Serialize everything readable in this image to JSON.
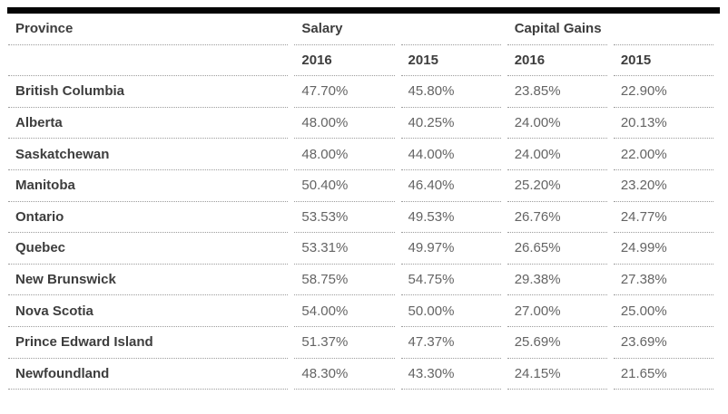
{
  "table": {
    "column_groups": [
      {
        "label": "Province"
      },
      {
        "label": "Salary"
      },
      {
        "label": "Capital Gains"
      }
    ],
    "year_headers": [
      "2016",
      "2015",
      "2016",
      "2015"
    ],
    "rows": [
      {
        "province": "British Columbia",
        "values": [
          "47.70%",
          "45.80%",
          "23.85%",
          "22.90%"
        ]
      },
      {
        "province": "Alberta",
        "values": [
          "48.00%",
          "40.25%",
          "24.00%",
          "20.13%"
        ]
      },
      {
        "province": "Saskatchewan",
        "values": [
          "48.00%",
          "44.00%",
          "24.00%",
          "22.00%"
        ]
      },
      {
        "province": "Manitoba",
        "values": [
          "50.40%",
          "46.40%",
          "25.20%",
          "23.20%"
        ]
      },
      {
        "province": "Ontario",
        "values": [
          "53.53%",
          "49.53%",
          "26.76%",
          "24.77%"
        ]
      },
      {
        "province": "Quebec",
        "values": [
          "53.31%",
          "49.97%",
          "26.65%",
          "24.99%"
        ]
      },
      {
        "province": "New Brunswick",
        "values": [
          "58.75%",
          "54.75%",
          "29.38%",
          "27.38%"
        ]
      },
      {
        "province": "Nova Scotia",
        "values": [
          "54.00%",
          "50.00%",
          "27.00%",
          "25.00%"
        ]
      },
      {
        "province": "Prince Edward Island",
        "values": [
          "51.37%",
          "47.37%",
          "25.69%",
          "23.69%"
        ]
      },
      {
        "province": "Newfoundland",
        "values": [
          "48.30%",
          "43.30%",
          "24.15%",
          "21.65%"
        ]
      }
    ],
    "colors": {
      "top_bar": "#040404",
      "header_text": "#3d3d3d",
      "value_text": "#646464",
      "divider": "#9c9c9c",
      "background": "#ffffff"
    }
  },
  "chart_data": {
    "type": "table",
    "columns": [
      "Province",
      "Salary 2016",
      "Salary 2015",
      "Capital Gains 2016",
      "Capital Gains 2015"
    ],
    "rows": [
      [
        "British Columbia",
        47.7,
        45.8,
        23.85,
        22.9
      ],
      [
        "Alberta",
        48.0,
        40.25,
        24.0,
        20.13
      ],
      [
        "Saskatchewan",
        48.0,
        44.0,
        24.0,
        22.0
      ],
      [
        "Manitoba",
        50.4,
        46.4,
        25.2,
        23.2
      ],
      [
        "Ontario",
        53.53,
        49.53,
        26.76,
        24.77
      ],
      [
        "Quebec",
        53.31,
        49.97,
        26.65,
        24.99
      ],
      [
        "New Brunswick",
        58.75,
        54.75,
        29.38,
        27.38
      ],
      [
        "Nova Scotia",
        54.0,
        50.0,
        27.0,
        25.0
      ],
      [
        "Prince Edward Island",
        51.37,
        47.37,
        25.69,
        23.69
      ],
      [
        "Newfoundland",
        48.3,
        43.3,
        24.15,
        21.65
      ]
    ],
    "units": "percent"
  }
}
